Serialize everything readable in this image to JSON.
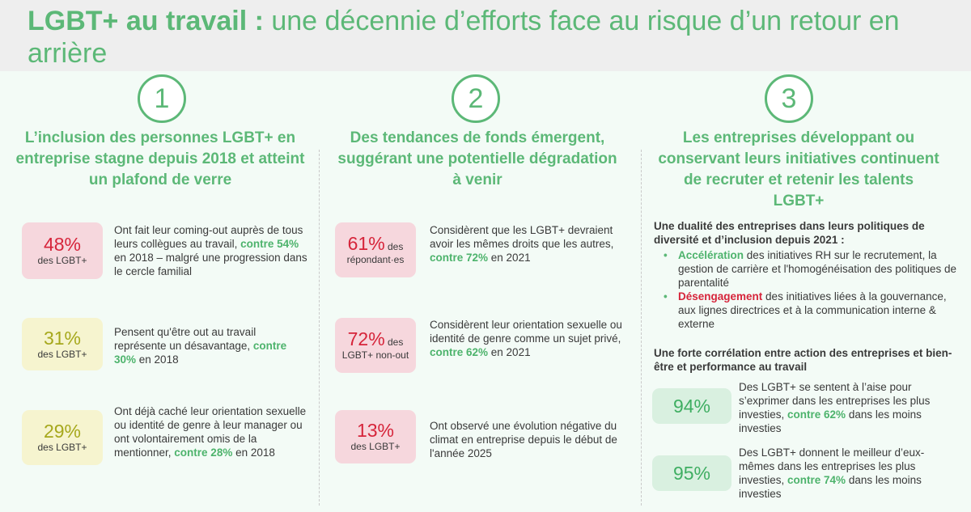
{
  "title": {
    "bold": "LGBT+ au travail :",
    "rest": " une décennie d’efforts face au risque d’un retour en arrière"
  },
  "columns": [
    {
      "number": "1",
      "title": "L’inclusion des personnes LGBT+ en entreprise stagne depuis 2018 et atteint un plafond de verre",
      "stats": [
        {
          "pct": "48%",
          "label": "des LGBT+",
          "text_a": "Ont fait leur coming-out auprès de tous leurs collègues au travail, ",
          "highlight": "contre 54%",
          "text_b": " en 2018 – malgré une progression dans le cercle familial"
        },
        {
          "pct": "31%",
          "label": "des LGBT+",
          "text_a": "Pensent qu'être out au travail représente un désavantage, ",
          "highlight": "contre 30%",
          "text_b": " en 2018"
        },
        {
          "pct": "29%",
          "label": "des LGBT+",
          "text_a": "Ont déjà caché leur orientation sexuelle ou identité de genre à leur manager ou ont volontairement omis de la mentionner, ",
          "highlight": "contre 28%",
          "text_b": " en 2018"
        }
      ]
    },
    {
      "number": "2",
      "title": "Des tendances de fonds émergent, suggérant une potentielle dégradation à venir",
      "stats": [
        {
          "pct": "61%",
          "label_inline": " des",
          "label": "répondant·es",
          "text_a": "Considèrent que les LGBT+ devraient avoir les mêmes droits que les autres, ",
          "highlight": "contre 72%",
          "text_b": " en 2021"
        },
        {
          "pct": "72%",
          "label_inline": " des",
          "label": "LGBT+ non-out",
          "text_a": "Considèrent leur orientation sexuelle ou identité de genre comme un sujet privé, ",
          "highlight": "contre 62%",
          "text_b": " en 2021"
        },
        {
          "pct": "13%",
          "label": "des LGBT+",
          "text_a": "Ont observé une évolution négative du climat en entreprise depuis le début de l'année 2025",
          "highlight": "",
          "text_b": ""
        }
      ]
    },
    {
      "number": "3",
      "title": "Les entreprises développant ou conservant leurs initiatives continuent de recruter et retenir les talents LGBT+",
      "heading1": "Une dualité des entreprises dans leurs politiques de diversité et d’inclusion depuis 2021 :",
      "bullets": [
        {
          "key": "Accélération",
          "text": " des initiatives RH sur le recrutement, la gestion de carrière et l'homogénéisation des politiques de parentalité"
        },
        {
          "key": "Désengagement",
          "text": " des initiatives liées à la gouvernance, aux lignes directrices et à la communication interne & externe"
        }
      ],
      "heading2": "Une forte corrélation entre action des entreprises et bien-être et performance au travail",
      "stats": [
        {
          "pct": "94%",
          "text_a": "Des LGBT+ se sentent à l’aise pour s’exprimer dans les entreprises les plus investies, ",
          "highlight": "contre 62%",
          "text_b": " dans les moins investies"
        },
        {
          "pct": "95%",
          "text_a": "Des LGBT+ donnent le meilleur d’eux-mêmes dans les entreprises les plus investies, ",
          "highlight": "contre 74%",
          "text_b": " dans les moins investies"
        }
      ]
    }
  ],
  "colors": {
    "accent_green": "#5cb877",
    "red": "#d6243a",
    "olive": "#a6a81c"
  }
}
